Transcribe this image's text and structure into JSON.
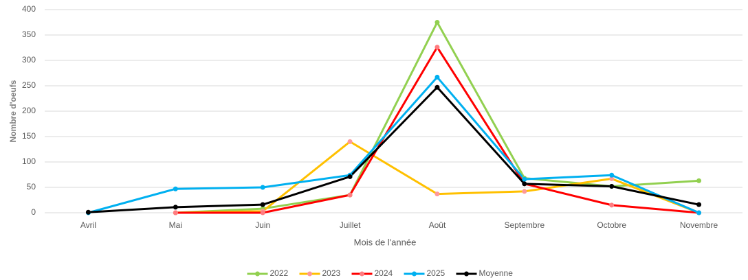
{
  "chart_data": {
    "type": "line",
    "x_label": "Mois de l'année",
    "y_label": "Nombre d'oeufs",
    "categories": [
      "Avril",
      "Mai",
      "Juin",
      "Juillet",
      "Août",
      "Septembre",
      "Octobre",
      "Novembre"
    ],
    "series": [
      {
        "name": "2022",
        "color": "#92d050",
        "marker_color": "#92d050",
        "values": [
          null,
          0,
          8,
          35,
          375,
          68,
          52,
          63
        ]
      },
      {
        "name": "2023",
        "color": "#ffc000",
        "marker_color": "#ff9999",
        "values": [
          null,
          0,
          3,
          140,
          37,
          42,
          67,
          0
        ]
      },
      {
        "name": "2024",
        "color": "#ff0000",
        "marker_color": "#ff7c80",
        "values": [
          null,
          0,
          0,
          35,
          326,
          57,
          15,
          0
        ]
      },
      {
        "name": "2025",
        "color": "#00b0f0",
        "marker_color": "#00b0f0",
        "values": [
          0,
          47,
          50,
          74,
          267,
          66,
          74,
          0
        ]
      },
      {
        "name": "Moyenne",
        "color": "#000000",
        "marker_color": "#000000",
        "values": [
          1,
          11,
          16,
          71,
          247,
          57,
          52,
          16
        ]
      }
    ],
    "ylim": [
      0,
      400
    ],
    "yticks": [
      0,
      50,
      100,
      150,
      200,
      250,
      300,
      350,
      400
    ],
    "grid": true,
    "legend": "bottom"
  }
}
